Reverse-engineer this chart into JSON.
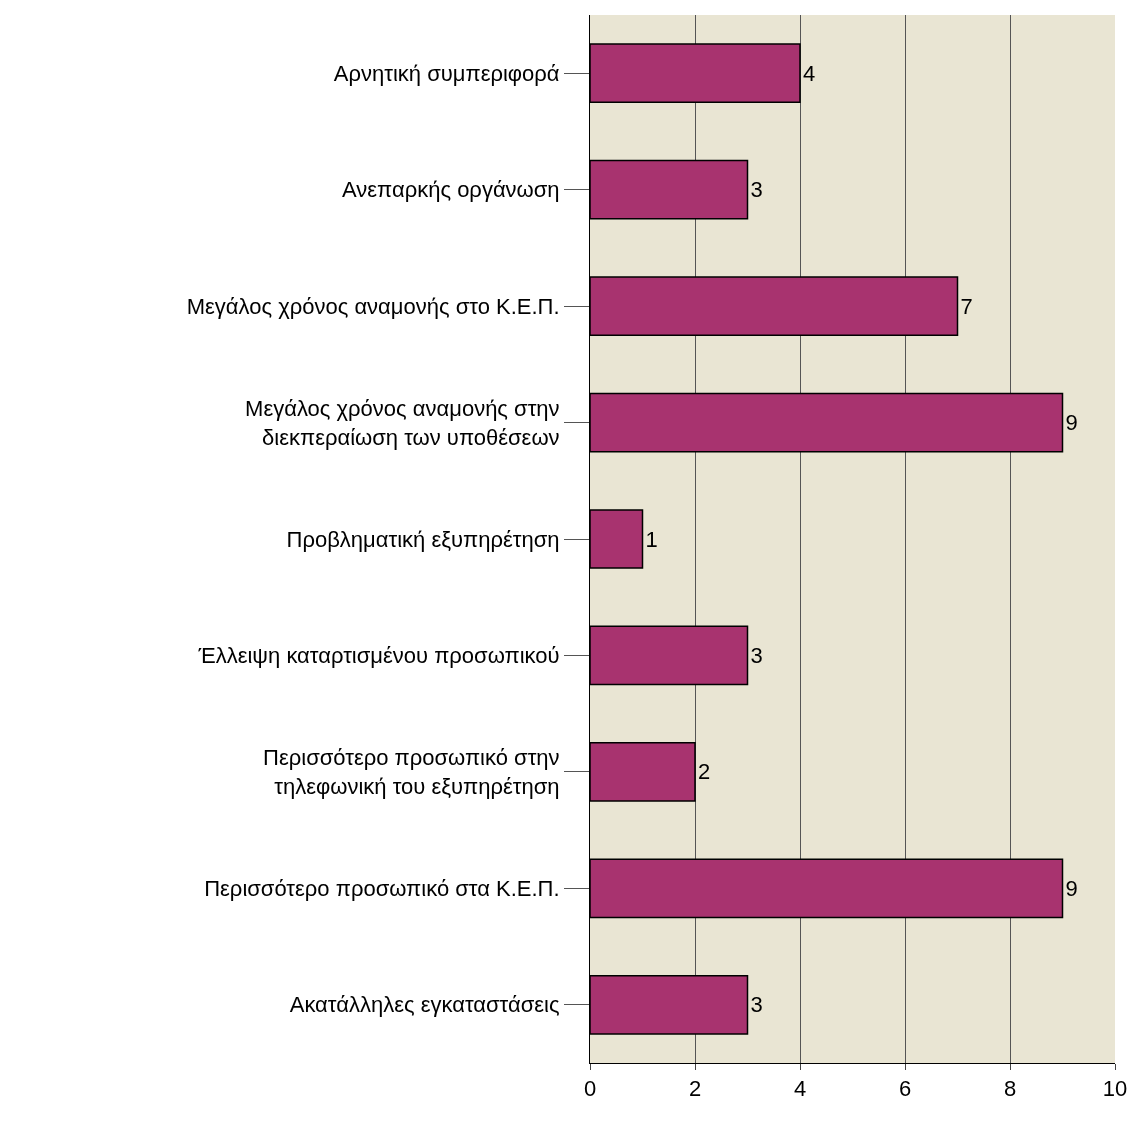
{
  "chart_data": {
    "type": "bar",
    "orientation": "horizontal",
    "categories": [
      "Αρνητική συμπεριφορά",
      "Ανεπαρκής οργάνωση",
      "Μεγάλος χρόνος αναμονής στο Κ.Ε.Π.",
      "Μεγάλος χρόνος αναμονής στην\nδιεκπεραίωση των υποθέσεων",
      "Προβληματική εξυπηρέτηση",
      "Έλλειψη καταρτισμένου προσωπικού",
      "Περισσότερο προσωπικό στην\nτηλεφωνική του εξυπηρέτηση",
      "Περισσότερο προσωπικό στα Κ.Ε.Π.",
      "Ακατάλληλες εγκαταστάσεις"
    ],
    "values": [
      4,
      3,
      7,
      9,
      1,
      3,
      2,
      9,
      3
    ],
    "color": "#a8336f",
    "data_labels": true,
    "xlim": [
      0,
      10
    ],
    "xticks": [
      0,
      2,
      4,
      6,
      8,
      10
    ],
    "grid": "x"
  }
}
